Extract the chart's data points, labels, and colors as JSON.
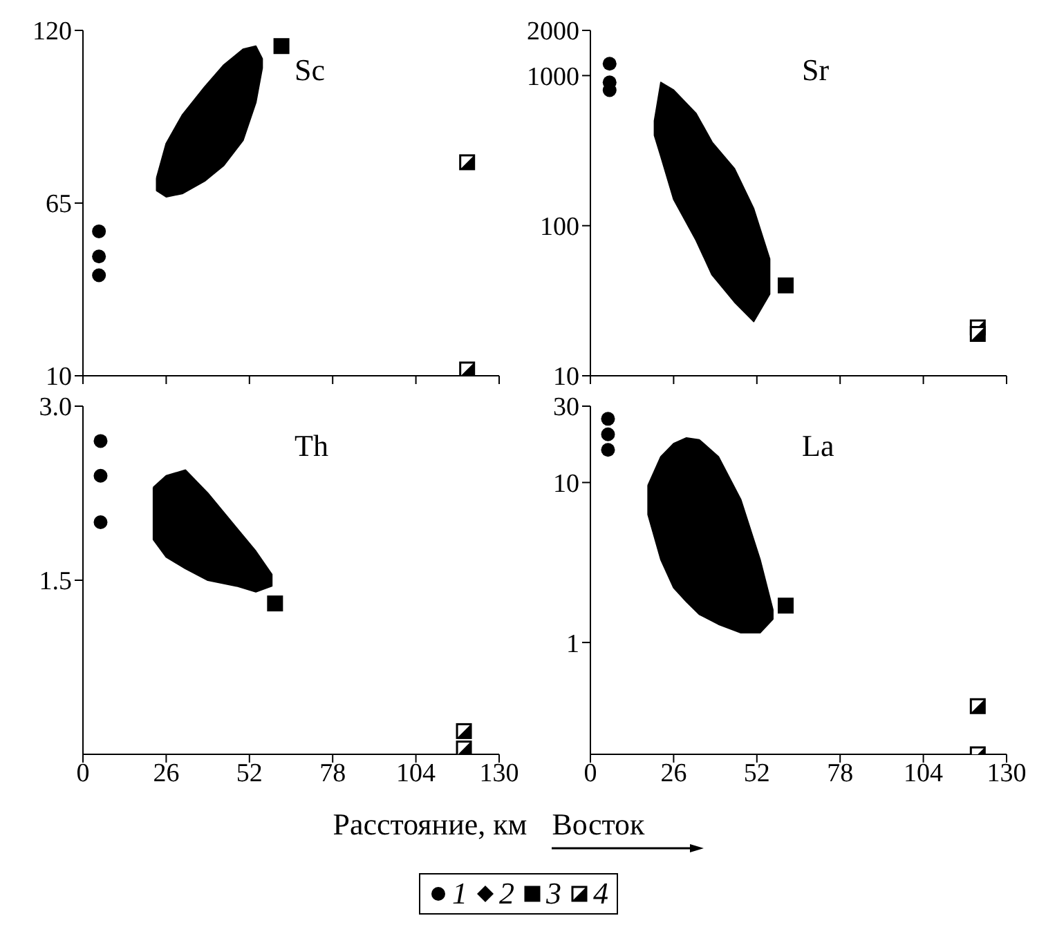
{
  "chart_data": [
    {
      "type": "scatter",
      "title": "Sc",
      "xlim": [
        0,
        130
      ],
      "xticks": [
        0,
        26,
        52,
        78,
        104,
        130
      ],
      "ylim": [
        10,
        120
      ],
      "yticks": [
        10,
        65,
        120
      ],
      "tick_labels": "y",
      "legend": "bottom",
      "series": [
        {
          "type": "area",
          "color": "#000000",
          "x": [
            23,
            26,
            31,
            38,
            44,
            50,
            54,
            56,
            56,
            54,
            50,
            44,
            38,
            31,
            26,
            23
          ],
          "values": [
            73,
            84,
            93,
            102,
            109,
            114,
            115,
            111,
            108,
            97,
            85,
            77,
            72,
            68,
            67,
            69
          ]
        },
        {
          "name": "1",
          "marker": "circle",
          "color": "#000000",
          "x": [
            5,
            5,
            5
          ],
          "values": [
            56,
            48,
            42
          ]
        },
        {
          "name": "2",
          "marker": "diamond",
          "color": "#000000"
        },
        {
          "name": "3",
          "marker": "square",
          "color": "#000000",
          "x": [
            62
          ],
          "values": [
            115
          ]
        },
        {
          "name": "4",
          "marker": "square",
          "color": "#ffffff",
          "x": [
            120,
            120
          ],
          "values": [
            78,
            12
          ]
        }
      ]
    },
    {
      "type": "scatter",
      "title": "Sr",
      "log": "y",
      "xlim": [
        0,
        130
      ],
      "xticks": [
        0,
        26,
        52,
        78,
        104,
        130
      ],
      "ylim": [
        10,
        2000
      ],
      "yticks": [
        10,
        100,
        1000,
        2000
      ],
      "tick_labels": "y",
      "series": [
        {
          "type": "area",
          "color": "#000000",
          "x": [
            20,
            22,
            26,
            33,
            38,
            45,
            51,
            56,
            56,
            51,
            45,
            38,
            33,
            26,
            22,
            20
          ],
          "values": [
            500,
            900,
            800,
            560,
            360,
            240,
            130,
            60,
            35,
            23,
            31,
            47,
            80,
            150,
            290,
            400
          ]
        },
        {
          "marker": "circle",
          "color": "#000000",
          "x": [
            6,
            6,
            6
          ],
          "values": [
            1200,
            900,
            800
          ]
        },
        {
          "marker": "square",
          "color": "#000000",
          "x": [
            61
          ],
          "values": [
            40
          ]
        },
        {
          "marker": "square",
          "color": "#ffffff",
          "x": [
            121,
            121
          ],
          "values": [
            21,
            19
          ]
        }
      ]
    },
    {
      "type": "scatter",
      "title": "Th",
      "xlabel": "Расстояние, км",
      "xlim": [
        0,
        130
      ],
      "xticks": [
        0,
        26,
        52,
        78,
        104,
        130
      ],
      "ylim": [
        0,
        3
      ],
      "yticks": [
        1.5,
        {
          "value": 3,
          "label": "3.0"
        }
      ],
      "series": [
        {
          "type": "area",
          "color": "#000000",
          "x": [
            22,
            26,
            32,
            39,
            48,
            54,
            59,
            59,
            54,
            48,
            39,
            32,
            26,
            22
          ],
          "values": [
            2.3,
            2.4,
            2.45,
            2.25,
            1.95,
            1.75,
            1.55,
            1.45,
            1.4,
            1.45,
            1.5,
            1.6,
            1.7,
            1.85
          ]
        },
        {
          "marker": "circle",
          "color": "#000000",
          "x": [
            5.5,
            5.5,
            5.5
          ],
          "values": [
            2.7,
            2.4,
            2.0
          ]
        },
        {
          "marker": "square",
          "color": "#000000",
          "x": [
            60
          ],
          "values": [
            1.3
          ]
        },
        {
          "marker": "square",
          "color": "#ffffff",
          "x": [
            119,
            119
          ],
          "values": [
            0.2,
            0.05
          ]
        }
      ]
    },
    {
      "type": "scatter",
      "title": "La",
      "log": "y",
      "annotations": [
        "Восток"
      ],
      "xlim": [
        0,
        130
      ],
      "xticks": [
        0,
        26,
        52,
        78,
        104,
        130
      ],
      "ylim": [
        0.2,
        30
      ],
      "yticks": [
        1,
        10,
        30
      ],
      "series": [
        {
          "type": "area",
          "color": "#000000",
          "x": [
            18,
            22,
            26,
            30,
            34,
            40,
            47,
            53,
            57,
            57,
            53,
            47,
            40,
            34,
            30,
            26,
            22,
            18
          ],
          "values": [
            9.6,
            14.5,
            17.5,
            19,
            18.5,
            14.5,
            7.8,
            3.3,
            1.6,
            1.4,
            1.15,
            1.15,
            1.3,
            1.5,
            1.8,
            2.2,
            3.3,
            6.3
          ]
        },
        {
          "marker": "circle",
          "color": "#000000",
          "x": [
            5.5,
            5.5,
            5.5
          ],
          "values": [
            25,
            20,
            16
          ]
        },
        {
          "marker": "square",
          "color": "#000000",
          "x": [
            61
          ],
          "values": [
            1.7
          ]
        },
        {
          "marker": "square",
          "color": "#ffffff",
          "x": [
            121,
            121
          ],
          "values": [
            0.4,
            0.2
          ]
        }
      ]
    }
  ]
}
